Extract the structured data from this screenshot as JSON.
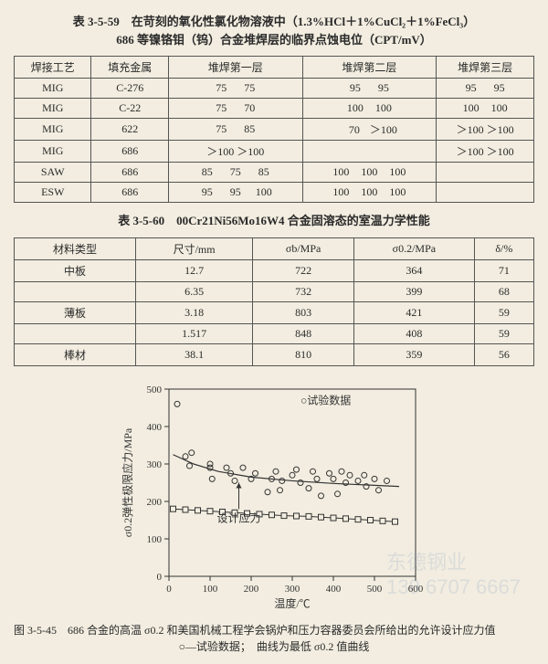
{
  "table1": {
    "title_line1": "表 3-5-59　在苛刻的氧化性氯化物溶液中（1.3%HCl＋1%CuCl₂＋1%FeCl₃）",
    "title_line2": "686 等镍铬钼（钨）合金堆焊层的临界点蚀电位（CPT/mV）",
    "headers": [
      "焊接工艺",
      "填充金属",
      "堆焊第一层",
      "堆焊第二层",
      "堆焊第三层"
    ],
    "rows": [
      {
        "proc": "MIG",
        "filler": "C-276",
        "l1": [
          "75",
          "75"
        ],
        "l2": [
          "95",
          "95"
        ],
        "l3": [
          "95",
          "95"
        ]
      },
      {
        "proc": "MIG",
        "filler": "C-22",
        "l1": [
          "75",
          "70"
        ],
        "l2": [
          "100",
          "100"
        ],
        "l3": [
          "100",
          "100"
        ]
      },
      {
        "proc": "MIG",
        "filler": "622",
        "l1": [
          "75",
          "85"
        ],
        "l2": [
          "70",
          "＞100"
        ],
        "l3": [
          "＞100",
          "＞100"
        ]
      },
      {
        "proc": "MIG",
        "filler": "686",
        "l1": [
          "＞100",
          "＞100"
        ],
        "l2": [
          "",
          ""
        ],
        "l3": [
          "＞100",
          "＞100"
        ]
      },
      {
        "proc": "SAW",
        "filler": "686",
        "l1": [
          "85",
          "75",
          "85"
        ],
        "l2": [
          "100",
          "100",
          "100"
        ],
        "l3": [
          "",
          ""
        ]
      },
      {
        "proc": "ESW",
        "filler": "686",
        "l1": [
          "95",
          "95",
          "100"
        ],
        "l2": [
          "100",
          "100",
          "100"
        ],
        "l3": [
          "",
          ""
        ]
      }
    ]
  },
  "table2": {
    "title": "表 3-5-60　00Cr21Ni56Mo16W4 合金固溶态的室温力学性能",
    "headers": [
      "材料类型",
      "尺寸/mm",
      "σb/MPa",
      "σ0.2/MPa",
      "δ/%"
    ],
    "rows": [
      {
        "type": "中板",
        "size": "12.7",
        "sb": "722",
        "s02": "364",
        "d": "71"
      },
      {
        "type": "",
        "size": "6.35",
        "sb": "732",
        "s02": "399",
        "d": "68"
      },
      {
        "type": "薄板",
        "size": "3.18",
        "sb": "803",
        "s02": "421",
        "d": "59"
      },
      {
        "type": "",
        "size": "1.517",
        "sb": "848",
        "s02": "408",
        "d": "59"
      },
      {
        "type": "棒材",
        "size": "38.1",
        "sb": "810",
        "s02": "359",
        "d": "56"
      }
    ]
  },
  "chart": {
    "xlabel": "温度/℃",
    "ylabel": "σ0.2弹性极限应力/MPa",
    "legend_data": "○试验数据",
    "design_label": "设计应力",
    "xlim": [
      0,
      600
    ],
    "xtick_step": 100,
    "ylim": [
      0,
      500
    ],
    "ytick_step": 100,
    "colors": {
      "bg": "#f2ede0",
      "axis": "#333",
      "points": "#333"
    },
    "test_points": [
      [
        20,
        460
      ],
      [
        40,
        320
      ],
      [
        50,
        295
      ],
      [
        55,
        330
      ],
      [
        100,
        300
      ],
      [
        100,
        290
      ],
      [
        105,
        260
      ],
      [
        140,
        290
      ],
      [
        150,
        275
      ],
      [
        160,
        255
      ],
      [
        180,
        290
      ],
      [
        200,
        260
      ],
      [
        210,
        275
      ],
      [
        240,
        225
      ],
      [
        250,
        260
      ],
      [
        260,
        280
      ],
      [
        270,
        230
      ],
      [
        275,
        255
      ],
      [
        300,
        270
      ],
      [
        310,
        285
      ],
      [
        320,
        250
      ],
      [
        340,
        235
      ],
      [
        350,
        280
      ],
      [
        360,
        260
      ],
      [
        370,
        215
      ],
      [
        390,
        275
      ],
      [
        400,
        260
      ],
      [
        410,
        220
      ],
      [
        420,
        280
      ],
      [
        430,
        250
      ],
      [
        440,
        270
      ],
      [
        460,
        255
      ],
      [
        475,
        270
      ],
      [
        480,
        240
      ],
      [
        500,
        260
      ],
      [
        510,
        230
      ],
      [
        530,
        255
      ]
    ],
    "curve": [
      [
        10,
        325
      ],
      [
        60,
        300
      ],
      [
        120,
        280
      ],
      [
        200,
        265
      ],
      [
        300,
        255
      ],
      [
        400,
        248
      ],
      [
        500,
        243
      ],
      [
        560,
        240
      ]
    ],
    "design_line": [
      [
        10,
        180
      ],
      [
        40,
        178
      ],
      [
        70,
        176
      ],
      [
        100,
        174
      ],
      [
        130,
        172
      ],
      [
        160,
        170
      ],
      [
        190,
        168
      ],
      [
        220,
        166
      ],
      [
        250,
        164
      ],
      [
        280,
        162
      ],
      [
        310,
        161
      ],
      [
        340,
        160
      ],
      [
        370,
        158
      ],
      [
        400,
        156
      ],
      [
        430,
        154
      ],
      [
        460,
        152
      ],
      [
        490,
        150
      ],
      [
        520,
        148
      ],
      [
        550,
        146
      ]
    ]
  },
  "caption": {
    "line1": "图 3-5-45　686 合金的高温 σ0.2 和美国机械工程学会锅炉和压力容器委员会所给出的允许设计应力值",
    "line2": "○—试验数据；　曲线为最低 σ0.2 值曲线"
  },
  "watermark": {
    "text1": "东德钢业",
    "text2": "139 6707 6667"
  }
}
